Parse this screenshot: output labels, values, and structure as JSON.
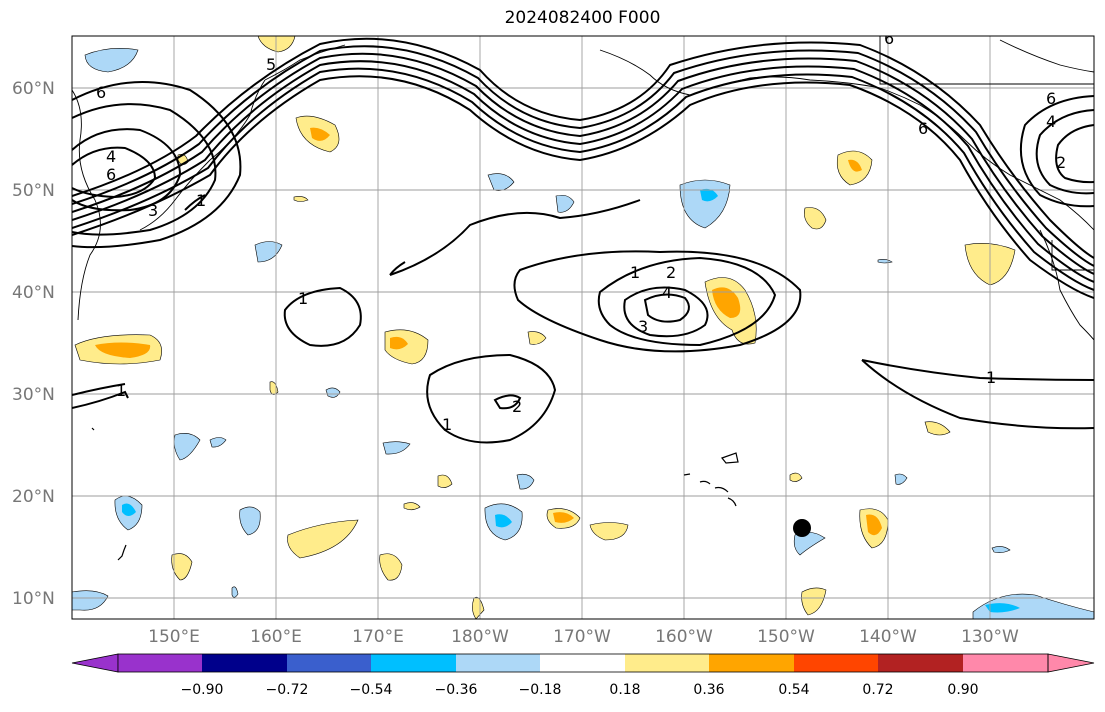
{
  "title": "2024082400 F000",
  "map": {
    "lat_labels": [
      "60°N",
      "50°N",
      "40°N",
      "30°N",
      "20°N",
      "10°N"
    ],
    "lon_labels": [
      "150°E",
      "160°E",
      "170°E",
      "180°W",
      "170°W",
      "160°W",
      "150°W",
      "140°W",
      "130°W"
    ],
    "contour_labels": [
      "6",
      "4",
      "6",
      "5",
      "3",
      "1",
      "1",
      "1",
      "1",
      "2",
      "4",
      "3",
      "2",
      "1",
      "6",
      "4",
      "2",
      "6",
      "6",
      "1"
    ],
    "colors": {
      "positive_light": "#ffec8b",
      "positive_mid": "#ffa500",
      "negative_light": "#add8f7",
      "negative_mid": "#00bfff",
      "grid": "#9e9e9e",
      "contour": "#000000"
    },
    "marker": "station-dot"
  },
  "colorbar": {
    "ticks": [
      "−0.90",
      "−0.72",
      "−0.54",
      "−0.36",
      "−0.18",
      "0.18",
      "0.36",
      "0.54",
      "0.72",
      "0.90"
    ],
    "colors": [
      "#9932cc",
      "#00008b",
      "#3a5fcd",
      "#00bfff",
      "#add8f7",
      "#ffffff",
      "#ffec8b",
      "#ffa500",
      "#ff4500",
      "#b22222",
      "#ff88aa"
    ]
  }
}
